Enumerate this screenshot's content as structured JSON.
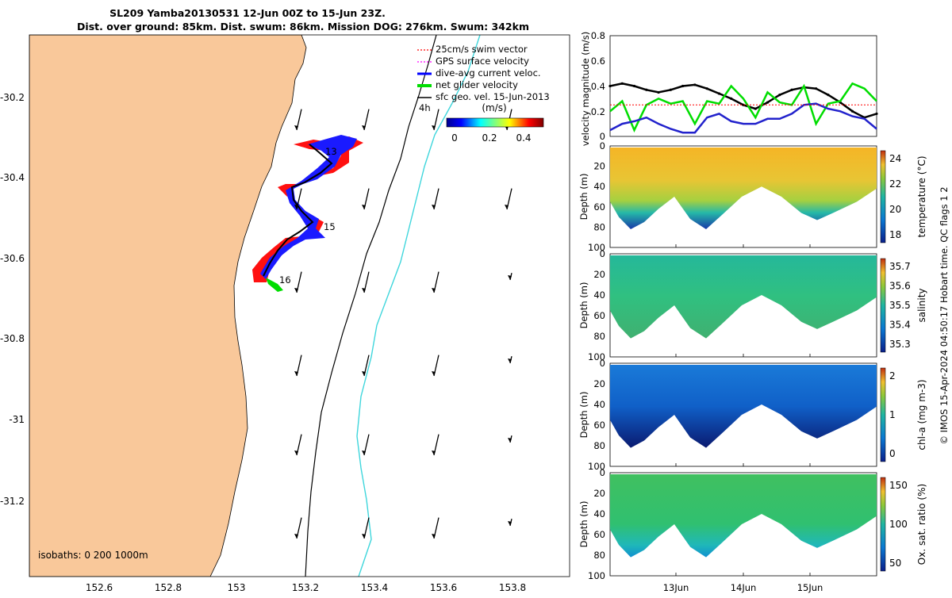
{
  "chart_data": [
    {
      "type": "map",
      "title_line1": "SL209 Yamba20130531 12-Jun 00Z to 15-Jun 23Z.",
      "title_line2": "Dist. over ground: 85km. Dist. swum: 86km. Mission DOG: 276km. Swum: 342km",
      "xlim": [
        152.4,
        154.0
      ],
      "ylim": [
        -31.4,
        -30.05
      ],
      "xticks": [
        "152.6",
        "152.8",
        "153",
        "153.2",
        "153.4",
        "153.6",
        "153.8"
      ],
      "yticks": [
        "-30.2",
        "-30.4",
        "-30.6",
        "-30.8",
        "-31",
        "-31.2"
      ],
      "legend": [
        {
          "label": "25cm/s swim vector",
          "color": "#ff0000"
        },
        {
          "label": "GPS surface velocity",
          "color": "#ff00ff"
        },
        {
          "label": "dive-avg current veloc.",
          "color": "#0000ff"
        },
        {
          "label": "net glider velocity",
          "color": "#00dd00"
        },
        {
          "label": "sfc geo. vel. 15-Jun-2013",
          "color": "#000000"
        }
      ],
      "legend_extra": "4h",
      "colorbar_label": "(m/s)",
      "colorbar_ticks": [
        "0",
        "0.2",
        "0.4"
      ],
      "day_labels": [
        "13",
        "15",
        "16"
      ],
      "isobaths_label": "isobaths: 0   200  1000m",
      "land_color": "#f9c89a"
    },
    {
      "type": "line",
      "ylabel": "velocity magnitude (m/s)",
      "ylim": [
        0,
        0.8
      ],
      "yticks": [
        "0",
        "0.2",
        "0.4",
        "0.6",
        "0.8"
      ],
      "xticks": [
        "13Jun",
        "14Jun",
        "15Jun"
      ],
      "series": [
        {
          "color": "#000000",
          "values": [
            0.4,
            0.42,
            0.4,
            0.37,
            0.35,
            0.37,
            0.4,
            0.41,
            0.38,
            0.34,
            0.3,
            0.25,
            0.22,
            0.27,
            0.33,
            0.37,
            0.39,
            0.38,
            0.33,
            0.27,
            0.2,
            0.15,
            0.18
          ]
        },
        {
          "color": "#00dd00",
          "values": [
            0.2,
            0.28,
            0.05,
            0.25,
            0.3,
            0.26,
            0.28,
            0.1,
            0.28,
            0.26,
            0.4,
            0.3,
            0.15,
            0.35,
            0.27,
            0.25,
            0.4,
            0.1,
            0.26,
            0.28,
            0.42,
            0.38,
            0.28
          ]
        },
        {
          "color": "#2222cc",
          "values": [
            0.05,
            0.1,
            0.12,
            0.15,
            0.1,
            0.06,
            0.03,
            0.03,
            0.15,
            0.18,
            0.12,
            0.1,
            0.1,
            0.14,
            0.14,
            0.18,
            0.25,
            0.26,
            0.22,
            0.2,
            0.16,
            0.14,
            0.06
          ]
        },
        {
          "color": "#ff0000",
          "values": [
            0.25,
            0.25,
            0.25,
            0.25,
            0.25,
            0.25,
            0.25,
            0.25,
            0.25,
            0.25,
            0.25,
            0.25,
            0.25,
            0.25,
            0.25,
            0.25,
            0.25,
            0.25,
            0.25,
            0.25,
            0.25,
            0.25,
            0.25
          ]
        }
      ]
    },
    {
      "type": "heatmap",
      "ylabel": "Depth (m)",
      "yticks": [
        "0",
        "20",
        "40",
        "60",
        "80",
        "100"
      ],
      "colorbar_label": "temperature (°C)",
      "colorbar_ticks": [
        "18",
        "20",
        "22",
        "24"
      ]
    },
    {
      "type": "heatmap",
      "ylabel": "Depth (m)",
      "yticks": [
        "0",
        "20",
        "40",
        "60",
        "80",
        "100"
      ],
      "colorbar_label": "salinity",
      "colorbar_ticks": [
        "35.3",
        "35.4",
        "35.5",
        "35.6",
        "35.7"
      ]
    },
    {
      "type": "heatmap",
      "ylabel": "Depth (m)",
      "yticks": [
        "0",
        "20",
        "40",
        "60",
        "80",
        "100"
      ],
      "colorbar_label": "chl-a (mg m-3)",
      "colorbar_ticks": [
        "0",
        "1",
        "2"
      ]
    },
    {
      "type": "heatmap",
      "ylabel": "Depth (m)",
      "yticks": [
        "0",
        "20",
        "40",
        "60",
        "80",
        "100"
      ],
      "xticks": [
        "13Jun",
        "14Jun",
        "15Jun"
      ],
      "colorbar_label": "Ox. sat. ratio (%)",
      "colorbar_ticks": [
        "50",
        "100",
        "150"
      ]
    }
  ],
  "footer": {
    "side_note": "© IMOS 15-Apr-2024 04:50:17 Hobart time. QC flags 1  2"
  }
}
